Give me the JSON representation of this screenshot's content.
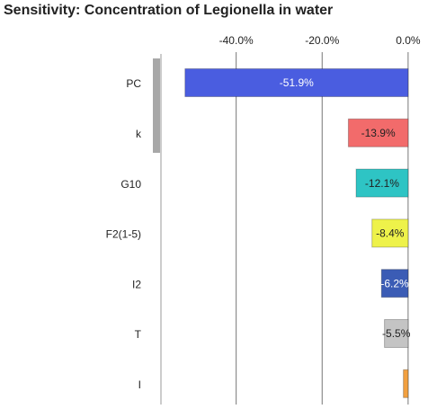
{
  "chart_data": {
    "type": "bar",
    "orientation": "horizontal",
    "title": "Sensitivity: Concentration of Legionella in water",
    "categories": [
      "PC",
      "k",
      "G10",
      "F2(1-5)",
      "I2",
      "T",
      "I"
    ],
    "values": [
      -51.9,
      -13.9,
      -12.1,
      -8.4,
      -6.2,
      -5.5,
      -1.1
    ],
    "value_labels": [
      "-51.9%",
      "-13.9%",
      "-12.1%",
      "-8.4%",
      "-6.2%",
      "-5.5%",
      null
    ],
    "colors": [
      "#4a5de0",
      "#f26b6b",
      "#2ec4c4",
      "#eef24a",
      "#3b5cb5",
      "#c4c4c4",
      "#f2a040"
    ],
    "xlim": [
      -57.5,
      1.7
    ],
    "xticks": [
      {
        "value": -40,
        "label": "-40.0%"
      },
      {
        "value": -20,
        "label": "-20.0%"
      },
      {
        "value": 0,
        "label": "0.0%"
      }
    ],
    "grid": true
  }
}
